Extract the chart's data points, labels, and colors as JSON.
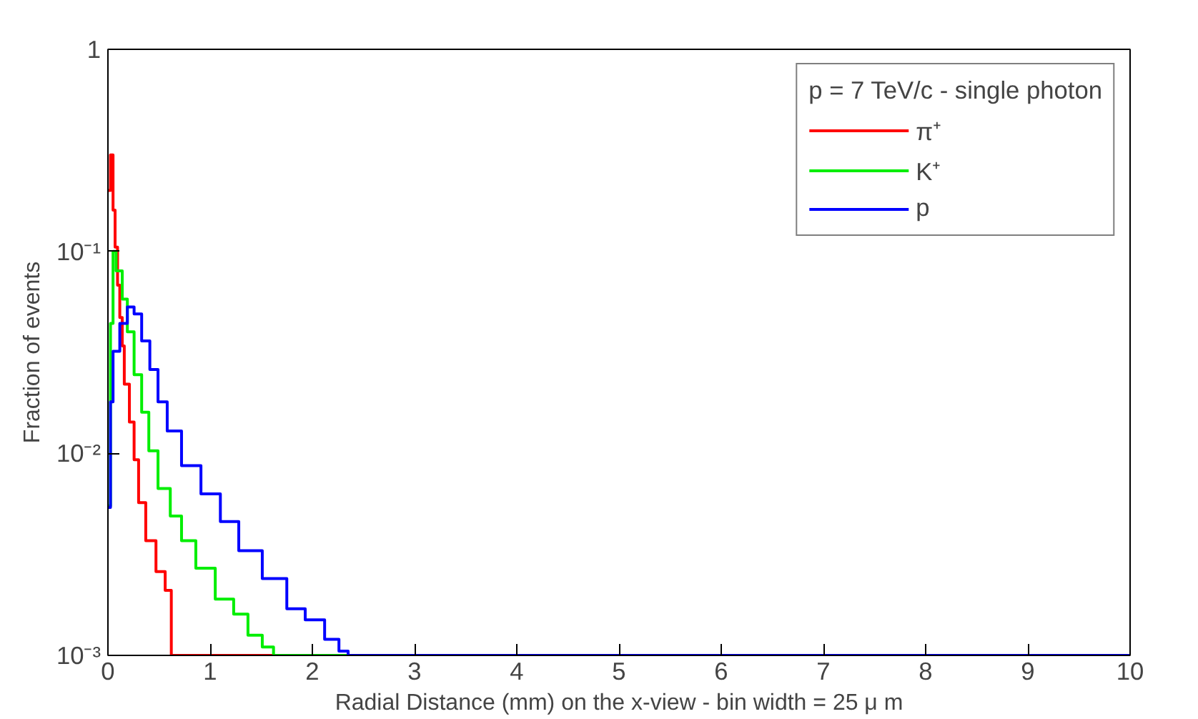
{
  "chart_data": {
    "type": "step",
    "xlabel": "Radial Distance (mm) on the x-view - bin width = 25 μ m",
    "ylabel": "Fraction of events",
    "legend_title": "p = 7 TeV/c - single photon",
    "log": "y",
    "grid": false,
    "legend": "top right",
    "line_style": "solid",
    "marker": "none",
    "xlim": [
      0,
      10
    ],
    "xticks": [
      0,
      1,
      2,
      3,
      4,
      5,
      6,
      7,
      8,
      9,
      10
    ],
    "ylim": [
      0.001,
      1
    ],
    "yticks": [
      1,
      {
        "value": 0.1,
        "label": "10⁻¹"
      },
      {
        "value": 0.01,
        "label": "10⁻²"
      },
      {
        "value": 0.001,
        "label": "10⁻³"
      }
    ],
    "series": [
      {
        "name": "π⁺",
        "color": "#ff0000",
        "x": [
          0,
          0.025,
          0.05,
          0.07,
          0.094,
          0.116,
          0.14,
          0.16,
          0.21,
          0.256,
          0.3,
          0.37,
          0.47,
          0.56,
          0.62,
          1.62
        ],
        "values": [
          0.2,
          0.3,
          0.16,
          0.105,
          0.068,
          0.047,
          0.034,
          0.022,
          0.0143,
          0.0093,
          0.0057,
          0.0037,
          0.0026,
          0.0021,
          0.001,
          0.001
        ]
      },
      {
        "name": "K⁺",
        "color": "#00ee00",
        "x": [
          0,
          0.025,
          0.05,
          0.08,
          0.14,
          0.19,
          0.256,
          0.33,
          0.4,
          0.49,
          0.61,
          0.72,
          0.86,
          1.05,
          1.23,
          1.37,
          1.51,
          1.62,
          2.35
        ],
        "values": [
          0.0055,
          0.044,
          0.1,
          0.08,
          0.058,
          0.04,
          0.0245,
          0.016,
          0.0103,
          0.0067,
          0.0049,
          0.0037,
          0.0027,
          0.0019,
          0.0016,
          0.00126,
          0.0011,
          0.001,
          0.001
        ]
      },
      {
        "name": "p",
        "color": "#0000ff",
        "x": [
          0,
          0.025,
          0.05,
          0.116,
          0.19,
          0.256,
          0.33,
          0.41,
          0.49,
          0.58,
          0.72,
          0.91,
          1.1,
          1.28,
          1.51,
          1.75,
          1.93,
          2.12,
          2.26,
          2.35,
          10
        ],
        "values": [
          0.0054,
          0.018,
          0.032,
          0.044,
          0.053,
          0.049,
          0.036,
          0.026,
          0.018,
          0.0129,
          0.0087,
          0.0063,
          0.0046,
          0.0033,
          0.0024,
          0.0017,
          0.0015,
          0.0012,
          0.00105,
          0.001,
          0.001
        ]
      }
    ]
  }
}
